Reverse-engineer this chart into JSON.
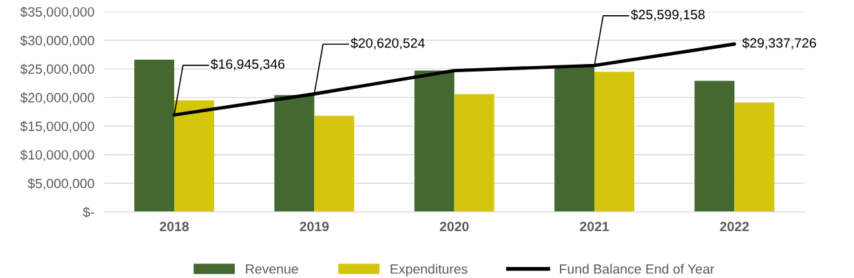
{
  "chart_data": {
    "type": "bar",
    "categories": [
      "2018",
      "2019",
      "2020",
      "2021",
      "2022"
    ],
    "series": [
      {
        "name": "Revenue",
        "color": "#436830",
        "values": [
          26600000,
          20400000,
          24700000,
          25600000,
          22900000
        ]
      },
      {
        "name": "Expenditures",
        "color": "#d4c60c",
        "values": [
          19500000,
          16800000,
          20600000,
          24500000,
          19100000
        ]
      },
      {
        "name": "Fund Balance End of Year",
        "type": "line",
        "color": "#000000",
        "values": [
          16945346,
          20620524,
          24700000,
          25599158,
          29337726
        ],
        "value_labels": [
          "$16,945,346",
          "$20,620,524",
          null,
          "$25,599,158",
          "$29,337,726"
        ]
      }
    ],
    "ylim": [
      0,
      35000000
    ],
    "yticks": [
      {
        "value": 0,
        "label": "$-"
      },
      {
        "value": 5000000,
        "label": "$5,000,000"
      },
      {
        "value": 10000000,
        "label": "$10,000,000"
      },
      {
        "value": 15000000,
        "label": "$15,000,000"
      },
      {
        "value": 20000000,
        "label": "$20,000,000"
      },
      {
        "value": 25000000,
        "label": "$25,000,000"
      },
      {
        "value": 30000000,
        "label": "$30,000,000"
      },
      {
        "value": 35000000,
        "label": "$35,000,000"
      }
    ],
    "grid": "y",
    "legend": "bottom",
    "marker": "none"
  }
}
